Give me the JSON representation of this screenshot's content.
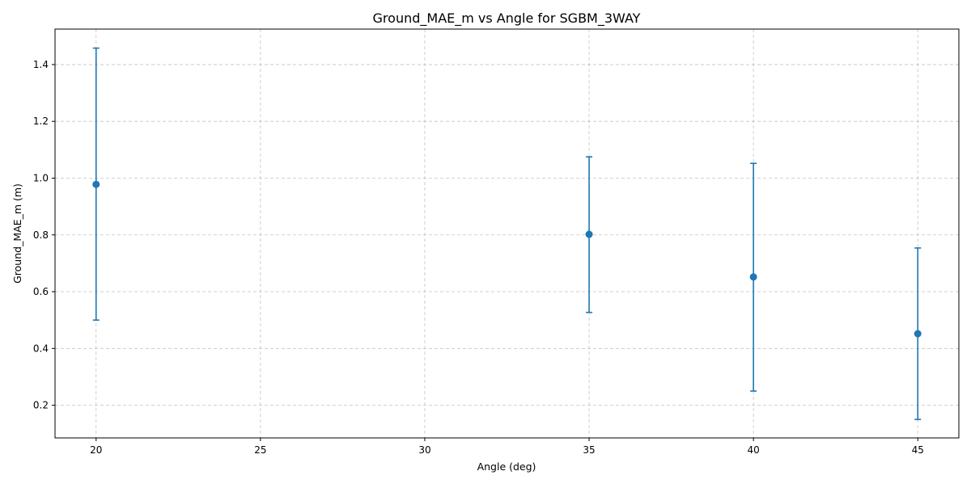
{
  "chart_data": {
    "type": "scatter",
    "title": "Ground_MAE_m vs Angle for SGBM_3WAY",
    "xlabel": "Angle (deg)",
    "ylabel": "Ground_MAE_m (m)",
    "xlim": [
      18.75,
      46.25
    ],
    "ylim": [
      0.085,
      1.525
    ],
    "xticks": [
      20,
      25,
      30,
      35,
      40,
      45
    ],
    "yticks": [
      0.2,
      0.4,
      0.6,
      0.8,
      1.0,
      1.2,
      1.4
    ],
    "xtick_labels": [
      "20",
      "25",
      "30",
      "35",
      "40",
      "45"
    ],
    "ytick_labels": [
      "0.2",
      "0.4",
      "0.6",
      "0.8",
      "1.0",
      "1.2",
      "1.4"
    ],
    "grid": true,
    "color": "#1f77b4",
    "series": [
      {
        "x": [
          20,
          35,
          40,
          45
        ],
        "y": [
          0.978,
          0.802,
          0.652,
          0.452
        ],
        "err_low": [
          0.5,
          0.527,
          0.25,
          0.15
        ],
        "err_high": [
          1.458,
          1.075,
          1.052,
          0.754
        ]
      }
    ]
  }
}
